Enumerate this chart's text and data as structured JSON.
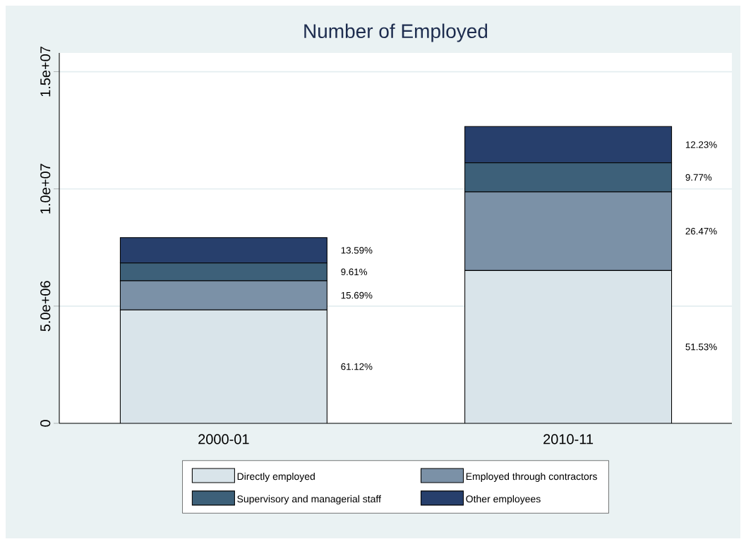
{
  "chart_data": {
    "type": "bar",
    "title": "Number of Employed",
    "stacked": true,
    "categories": [
      "2000-01",
      "2010-11"
    ],
    "series": [
      {
        "name": "Directly employed",
        "color": "#d9e4ea",
        "values": [
          4840000,
          6520000
        ]
      },
      {
        "name": "Employed through contractors",
        "color": "#7b91a7",
        "values": [
          1240000,
          3350000
        ]
      },
      {
        "name": "Supervisory and managerial staff",
        "color": "#3d6079",
        "values": [
          760000,
          1240000
        ]
      },
      {
        "name": "Other employees",
        "color": "#273f6c",
        "values": [
          1080000,
          1550000
        ]
      }
    ],
    "annotations": [
      "61.12%",
      "15.69%",
      "9.61%",
      "13.59%",
      "51.53%",
      "26.47%",
      "9.77%",
      "12.23%"
    ],
    "ylim": [
      0,
      15800000
    ],
    "yticks": [
      0,
      {
        "value": 5000000,
        "label": "5.0e+06"
      },
      {
        "value": 10000000,
        "label": "1.0e+07"
      },
      {
        "value": 15000000,
        "label": "1.5e+07"
      }
    ],
    "grid": "y",
    "legend": "bottom"
  }
}
